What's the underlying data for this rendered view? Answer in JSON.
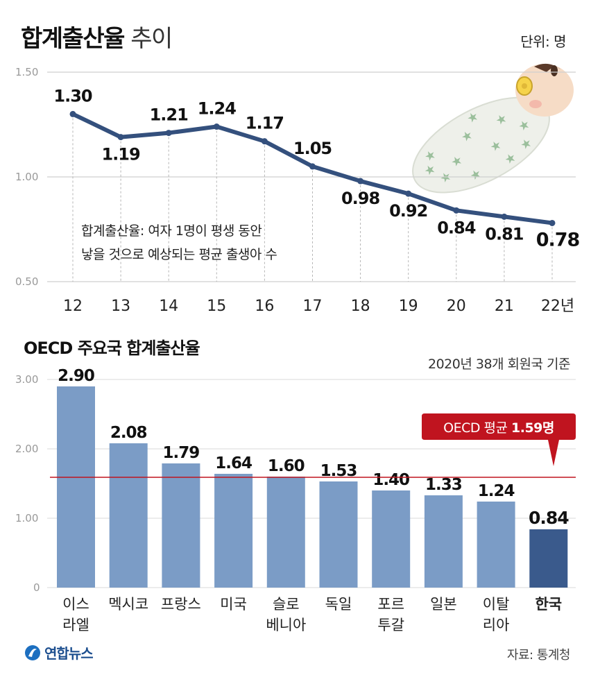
{
  "header": {
    "title_bold": "합계출산율",
    "title_light": "추이",
    "unit": "단위: 명"
  },
  "chart_data": [
    {
      "type": "line",
      "title": "합계출산율 추이",
      "unit": "단위: 명",
      "x": [
        "12",
        "13",
        "14",
        "15",
        "16",
        "17",
        "18",
        "19",
        "20",
        "21",
        "22년"
      ],
      "values": [
        1.3,
        1.19,
        1.21,
        1.24,
        1.17,
        1.05,
        0.98,
        0.92,
        0.84,
        0.81,
        0.78
      ],
      "value_labels": [
        "1.30",
        "1.19",
        "1.21",
        "1.24",
        "1.17",
        "1.05",
        "0.98",
        "0.92",
        "0.84",
        "0.81",
        "0.78"
      ],
      "yticks": [
        "1.50",
        "1.00",
        "0.50"
      ],
      "ylim": [
        0.5,
        1.5
      ],
      "annotation": [
        "합계출산율: 여자 1명이 평생 동안",
        "낳을 것으로 예상되는 평균 출생아 수"
      ],
      "grid": true,
      "color": "#34507d"
    },
    {
      "type": "bar",
      "title": "OECD 주요국 합계출산율",
      "note": "2020년 38개 회원국 기준",
      "categories": [
        [
          "이스",
          "라엘"
        ],
        [
          "멕시코"
        ],
        [
          "프랑스"
        ],
        [
          "미국"
        ],
        [
          "슬로",
          "베니아"
        ],
        [
          "독일"
        ],
        [
          "포르",
          "투갈"
        ],
        [
          "일본"
        ],
        [
          "이탈",
          "리아"
        ],
        [
          "한국"
        ]
      ],
      "values": [
        2.9,
        2.08,
        1.79,
        1.64,
        1.6,
        1.53,
        1.4,
        1.33,
        1.24,
        0.84
      ],
      "value_labels": [
        "2.90",
        "2.08",
        "1.79",
        "1.64",
        "1.60",
        "1.53",
        "1.40",
        "1.33",
        "1.24",
        "0.84"
      ],
      "yticks": [
        "3.00",
        "2.00",
        "1.00",
        "0"
      ],
      "ylim": [
        0,
        3.0
      ],
      "reference_line": {
        "value": 1.59,
        "label_prefix": "OECD 평균 ",
        "label_value": "1.59명"
      },
      "colors": {
        "bar": "#7b9cc6",
        "highlight": "#3a5a8c",
        "reference": "#c0141f"
      }
    }
  ],
  "footer": {
    "logo": "연합뉴스",
    "source": "자료: 통계청"
  }
}
